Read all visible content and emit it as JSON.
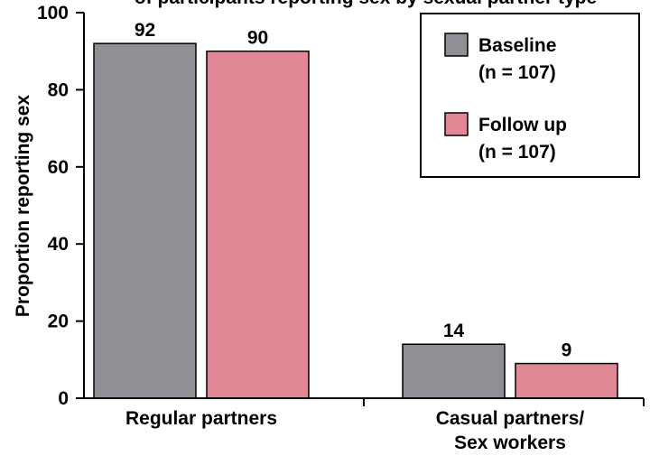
{
  "chart_data": {
    "type": "bar",
    "title": "of participants reporting sex by sexual partner type",
    "ylabel": "Proportion reporting sex",
    "xlabel": "",
    "ylim": [
      0,
      100
    ],
    "yticks": [
      0,
      20,
      40,
      60,
      80,
      100
    ],
    "categories": [
      [
        "Regular partners"
      ],
      [
        "Casual partners/",
        "Sex workers"
      ]
    ],
    "series": [
      {
        "name": "Baseline",
        "sublabel": "(n = 107)",
        "color": "#8e9096",
        "values": [
          92,
          14
        ]
      },
      {
        "name": "Follow up",
        "sublabel": "(n = 107)",
        "color": "#e08896",
        "values": [
          90,
          9
        ]
      }
    ],
    "data_labels": true,
    "legend_placement": "top-right",
    "grid": false
  }
}
